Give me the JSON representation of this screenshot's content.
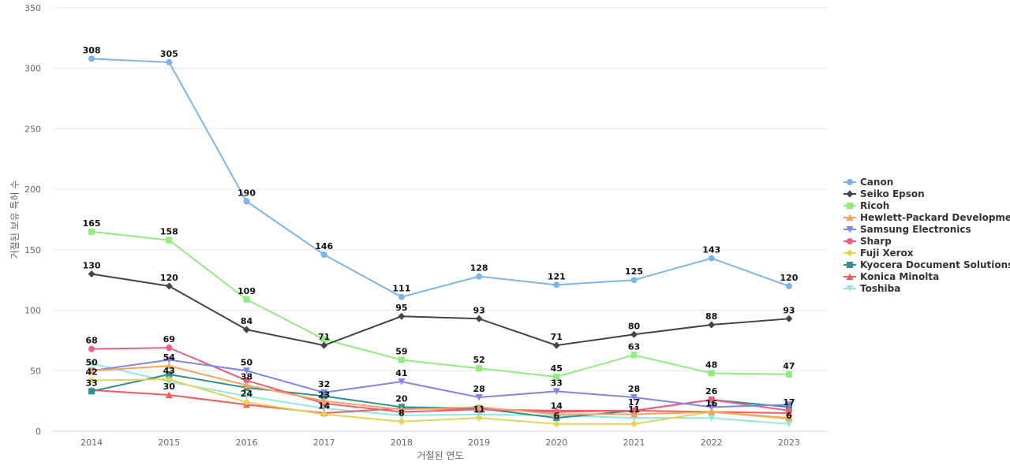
{
  "chart_data": {
    "type": "line",
    "title": "",
    "xlabel": "거절된 연도",
    "ylabel": "거절된 보유 특허 수",
    "x": [
      2014,
      2015,
      2016,
      2017,
      2018,
      2019,
      2020,
      2021,
      2022,
      2023
    ],
    "ylim": [
      0,
      350
    ],
    "yticks": [
      0,
      50,
      100,
      150,
      200,
      250,
      300,
      350
    ],
    "grid": true,
    "legend_position": "right",
    "show_data_labels": true,
    "series": [
      {
        "name": "Canon",
        "color": "#7cb5ec",
        "marker": "circle",
        "values": [
          308,
          305,
          190,
          146,
          111,
          128,
          121,
          125,
          143,
          120
        ],
        "labels": [
          true,
          true,
          true,
          true,
          true,
          true,
          true,
          true,
          true,
          true
        ]
      },
      {
        "name": "Seiko Epson",
        "color": "#434348",
        "marker": "diamond",
        "values": [
          130,
          120,
          84,
          71,
          95,
          93,
          71,
          80,
          88,
          93
        ],
        "labels": [
          true,
          true,
          true,
          true,
          true,
          true,
          true,
          true,
          true,
          true
        ]
      },
      {
        "name": "Ricoh",
        "color": "#90ed7d",
        "marker": "square",
        "values": [
          165,
          158,
          109,
          76,
          59,
          52,
          45,
          63,
          48,
          47
        ],
        "labels": [
          true,
          true,
          true,
          false,
          true,
          true,
          true,
          true,
          true,
          true
        ]
      },
      {
        "name": "Hewlett-Packard Development",
        "color": "#f7a35c",
        "marker": "triangle",
        "values": [
          50,
          54,
          38,
          25,
          18,
          20,
          14,
          14,
          16,
          11
        ],
        "labels": [
          false,
          true,
          true,
          false,
          false,
          false,
          true,
          false,
          true,
          false
        ]
      },
      {
        "name": "Samsung Electronics",
        "color": "#8085e9",
        "marker": "triangle-down",
        "values": [
          50,
          59,
          50,
          32,
          41,
          28,
          33,
          28,
          20,
          22
        ],
        "labels": [
          true,
          false,
          true,
          true,
          true,
          true,
          true,
          true,
          false,
          false
        ]
      },
      {
        "name": "Sharp",
        "color": "#f15c80",
        "marker": "circle",
        "values": [
          68,
          69,
          42,
          23,
          16,
          18,
          16,
          17,
          26,
          17
        ],
        "labels": [
          true,
          true,
          false,
          true,
          false,
          false,
          false,
          true,
          true,
          true
        ]
      },
      {
        "name": "Fuji Xerox",
        "color": "#e4d354",
        "marker": "diamond",
        "values": [
          42,
          43,
          24,
          14,
          8,
          11,
          6,
          6,
          16,
          10
        ],
        "labels": [
          true,
          true,
          true,
          true,
          true,
          true,
          true,
          false,
          true,
          false
        ]
      },
      {
        "name": "Kyocera Document Solutions",
        "color": "#2b908f",
        "marker": "square",
        "values": [
          33,
          47,
          36,
          29,
          20,
          19,
          11,
          17,
          26,
          20
        ],
        "labels": [
          true,
          false,
          false,
          false,
          true,
          false,
          false,
          false,
          false,
          false
        ]
      },
      {
        "name": "Konica Minolta",
        "color": "#f45b5b",
        "marker": "triangle",
        "values": [
          34,
          30,
          22,
          15,
          19,
          18,
          17,
          17,
          16,
          15
        ],
        "labels": [
          false,
          true,
          false,
          false,
          false,
          false,
          false,
          false,
          false,
          false
        ]
      },
      {
        "name": "Toshiba",
        "color": "#91e8e1",
        "marker": "triangle-down",
        "values": [
          56,
          41,
          29,
          19,
          13,
          14,
          13,
          11,
          11,
          6
        ],
        "labels": [
          false,
          false,
          false,
          false,
          false,
          false,
          false,
          true,
          false,
          true
        ]
      }
    ]
  }
}
